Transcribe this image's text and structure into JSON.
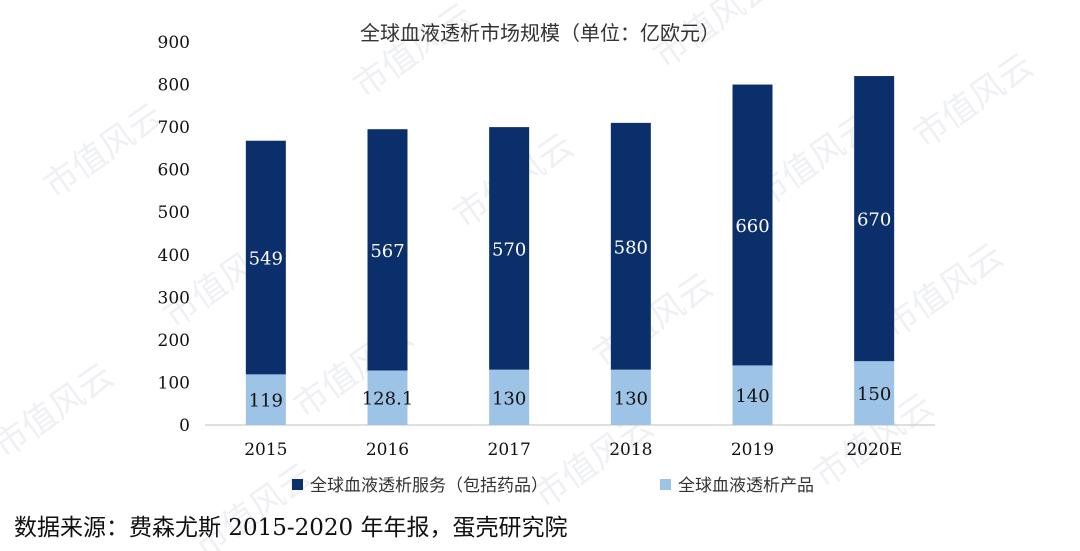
{
  "chart_data": {
    "type": "bar",
    "stacked": true,
    "title": "全球血液透析市场规模（单位：亿欧元）",
    "categories": [
      "2015",
      "2016",
      "2017",
      "2018",
      "2019",
      "2020E"
    ],
    "series": [
      {
        "name": "全球血液透析产品",
        "values": [
          119,
          128.1,
          130,
          130,
          140,
          150
        ],
        "labels": [
          "119",
          "128.1",
          "130",
          "130",
          "140",
          "150"
        ],
        "color": "#9dc3e6",
        "label_color": "#111111"
      },
      {
        "name": "全球血液透析服务（包括药品）",
        "values": [
          549,
          567,
          570,
          580,
          660,
          670
        ],
        "labels": [
          "549",
          "567",
          "570",
          "580",
          "660",
          "670"
        ],
        "color": "#0b2f6b",
        "label_color": "#ffffff"
      }
    ],
    "legend_order": [
      1,
      0
    ],
    "yticks": [
      0,
      100,
      200,
      300,
      400,
      500,
      600,
      700,
      800,
      900
    ],
    "ylim": [
      0,
      900
    ],
    "grid": false,
    "legend_position": "bottom"
  },
  "watermark": "市值风云",
  "source": "数据来源：费森尤斯 2015-2020 年年报，蛋壳研究院"
}
